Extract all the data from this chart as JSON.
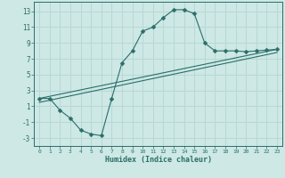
{
  "xlabel": "Humidex (Indice chaleur)",
  "bg_color": "#cde8e5",
  "grid_color": "#b8d8d5",
  "line_color": "#2a6e68",
  "xlim": [
    -0.5,
    23.5
  ],
  "ylim": [
    -4,
    14.2
  ],
  "xticks": [
    0,
    1,
    2,
    3,
    4,
    5,
    6,
    7,
    8,
    9,
    10,
    11,
    12,
    13,
    14,
    15,
    16,
    17,
    18,
    19,
    20,
    21,
    22,
    23
  ],
  "yticks": [
    -3,
    -1,
    1,
    3,
    5,
    7,
    9,
    11,
    13
  ],
  "curve_x": [
    0,
    1,
    2,
    3,
    4,
    5,
    6,
    7,
    8,
    9,
    10,
    11,
    12,
    13,
    14,
    15,
    16,
    17,
    18,
    19,
    20,
    21,
    22,
    23
  ],
  "curve_y": [
    2.0,
    2.0,
    0.5,
    -0.5,
    -2.0,
    -2.5,
    -2.7,
    2.0,
    6.5,
    8.0,
    10.5,
    11.0,
    12.2,
    13.2,
    13.2,
    12.7,
    9.0,
    8.0,
    8.0,
    8.0,
    7.9,
    8.0,
    8.1,
    8.2
  ],
  "line1_x": [
    0,
    23
  ],
  "line1_y": [
    2.0,
    8.2
  ],
  "line2_x": [
    0,
    23
  ],
  "line2_y": [
    1.5,
    7.8
  ],
  "markersize": 2.5
}
